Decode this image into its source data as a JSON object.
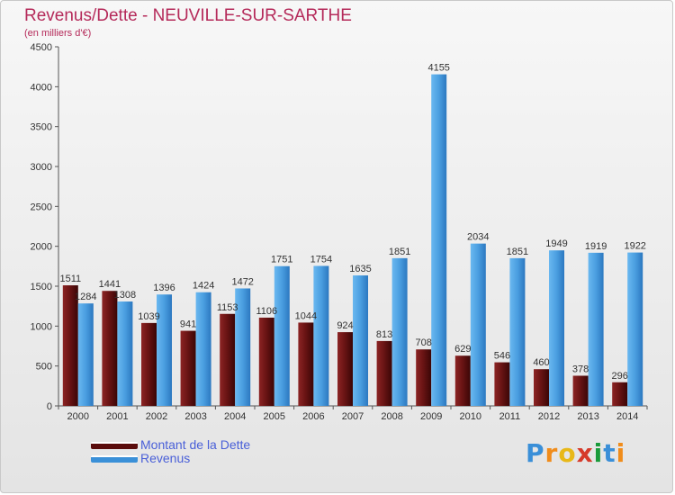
{
  "title": "Revenus/Dette - NEUVILLE-SUR-SARTHE",
  "subtitle": "(en milliers d'€)",
  "legend": {
    "debt_label": "Montant de la Dette",
    "revenue_label": "Revenus"
  },
  "logo": {
    "text": "Proxiti",
    "letters": [
      "P",
      "r",
      "o",
      "x",
      "i",
      "t",
      "i"
    ],
    "colors": [
      "#3a8fd8",
      "#f08c1a",
      "#e8b818",
      "#d63a2a",
      "#1a9a3a",
      "#3a8fd8",
      "#f08c1a"
    ]
  },
  "colors": {
    "debt": "#7a1a1a",
    "revenue": "#4a9ee0",
    "title": "#b52a5a",
    "legend_text": "#4a60d8"
  },
  "chart_data": {
    "type": "bar",
    "title": "Revenus/Dette - NEUVILLE-SUR-SARTHE",
    "subtitle": "(en milliers d'€)",
    "categories": [
      "2000",
      "2001",
      "2002",
      "2003",
      "2004",
      "2005",
      "2006",
      "2007",
      "2008",
      "2009",
      "2010",
      "2011",
      "2012",
      "2013",
      "2014"
    ],
    "series": [
      {
        "name": "Montant de la Dette",
        "values": [
          1511,
          1441,
          1039,
          941,
          1153,
          1106,
          1044,
          924,
          813,
          708,
          629,
          546,
          460,
          378,
          296
        ]
      },
      {
        "name": "Revenus",
        "values": [
          1284,
          1308,
          1396,
          1424,
          1472,
          1751,
          1754,
          1635,
          1851,
          4155,
          2034,
          1851,
          1949,
          1919,
          1922
        ]
      }
    ],
    "y_ticks": [
      0,
      500,
      1000,
      1500,
      2000,
      2500,
      3000,
      3500,
      4000,
      4500
    ],
    "ylim": [
      0,
      4500
    ],
    "grid": false,
    "legend_position": "bottom-left"
  }
}
